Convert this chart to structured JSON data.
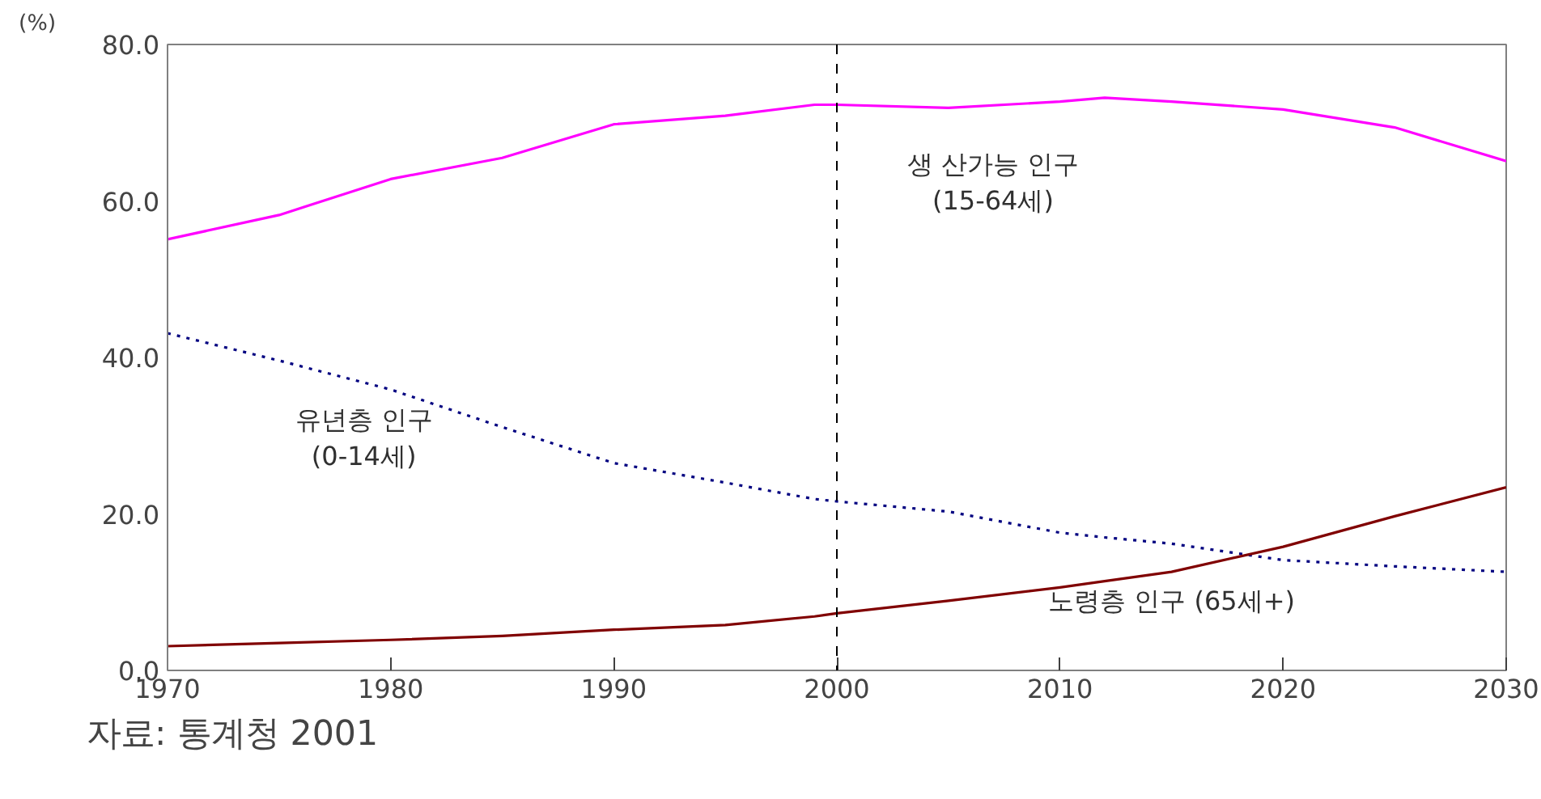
{
  "chart_data": {
    "type": "line",
    "ylabel": "(%)",
    "x": [
      1970,
      1975,
      1980,
      1985,
      1990,
      1995,
      1999,
      2000,
      2005,
      2010,
      2012,
      2015,
      2020,
      2025,
      2030
    ],
    "series": [
      {
        "name": "생 산가능 인구\n(15-64세)",
        "color": "#ff00ff",
        "line_style": "solid",
        "values": [
          55.1,
          58.2,
          62.8,
          65.5,
          69.8,
          70.9,
          72.3,
          72.3,
          71.9,
          72.7,
          73.2,
          72.7,
          71.7,
          69.4,
          65.1
        ]
      },
      {
        "name": "유년층 인구\n(0-14세)",
        "color": "#000080",
        "line_style": "dotted",
        "values": [
          43.1,
          39.6,
          35.9,
          31.1,
          26.5,
          24.0,
          21.9,
          21.6,
          20.3,
          17.6,
          17.0,
          16.2,
          14.1,
          13.3,
          12.6
        ]
      },
      {
        "name": "노령층 인구 (65세+)",
        "color": "#800000",
        "line_style": "solid",
        "values": [
          3.1,
          3.5,
          3.9,
          4.4,
          5.2,
          5.8,
          6.9,
          7.3,
          8.9,
          10.6,
          11.4,
          12.6,
          15.8,
          19.7,
          23.4
        ]
      }
    ],
    "xlim": [
      1970,
      2030
    ],
    "xticks": [
      1970,
      1980,
      1990,
      2000,
      2010,
      2020,
      2030
    ],
    "ylim": [
      0,
      80
    ],
    "yticks": [
      {
        "value": 0,
        "label": "0.0"
      },
      {
        "value": 20,
        "label": "20.0"
      },
      {
        "value": 40,
        "label": "40.0"
      },
      {
        "value": 60,
        "label": "60.0"
      },
      {
        "value": 80,
        "label": "80.0"
      }
    ],
    "grid": false,
    "legend": false,
    "marker": "none",
    "ref_lines": [
      {
        "axis": "x",
        "value": 2000,
        "label": null,
        "color": "#000000",
        "line_style": "dashed"
      }
    ],
    "annotations": [
      "자료: 통계청 2001"
    ]
  }
}
